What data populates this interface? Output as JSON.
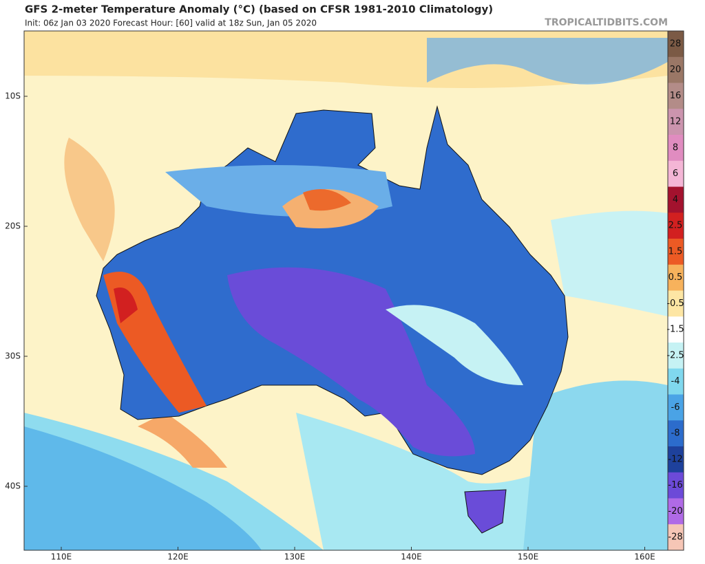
{
  "header": {
    "title": "GFS 2-meter Temperature Anomaly (°C) (based on CFSR 1981-2010 Climatology)",
    "subtitle": "Init: 06z Jan 03 2020   Forecast Hour: [60]   valid at 18z Sun, Jan 05 2020",
    "source": "TROPICALTIDBITS.COM"
  },
  "map": {
    "lat_labels": [
      "10S",
      "20S",
      "30S",
      "40S"
    ],
    "lon_labels": [
      "110E",
      "120E",
      "130E",
      "140E",
      "150E",
      "160E"
    ]
  },
  "colorbar": {
    "labels": [
      "28",
      "20",
      "16",
      "12",
      "8",
      "6",
      "4",
      "2.5",
      "1.5",
      "0.5",
      "-0.5",
      "-1.5",
      "-2.5",
      "-4",
      "-6",
      "-8",
      "-12",
      "-16",
      "-20",
      "-28"
    ],
    "colors": [
      "#7b5a45",
      "#9a7766",
      "#b38c88",
      "#cb94ae",
      "#e08cc0",
      "#f4b6d6",
      "#a3122e",
      "#d22020",
      "#ec5a24",
      "#f7b25c",
      "#fde6a4",
      "#ffffff",
      "#c6f2f4",
      "#80d8ee",
      "#4aa3e6",
      "#2c6ccc",
      "#1e419c",
      "#6c4ad8",
      "#b06ae6",
      "#f6c6b6"
    ]
  }
}
